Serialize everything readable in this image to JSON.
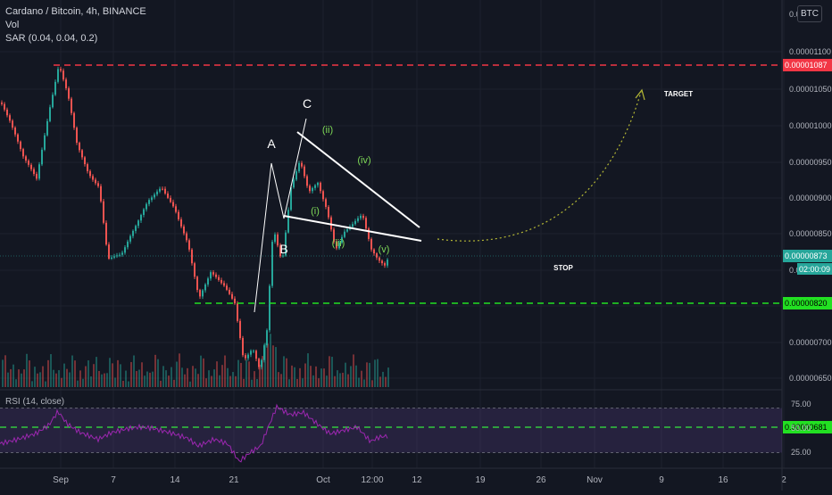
{
  "legend": {
    "title": "Cardano / Bitcoin, 4h, BINANCE",
    "vol": "Vol",
    "sar": "SAR (0.04, 0.04, 0.2)",
    "rsi": "RSI (14, close)"
  },
  "currency_badge": "BTC",
  "colors": {
    "background": "#131722",
    "up": "#26a69a",
    "down": "#ef5350",
    "resistance": "#f23645",
    "support": "#22e022",
    "rsi_line": "#9c27b0",
    "last_price": "#26a69a"
  },
  "chart_data": {
    "type": "candlestick",
    "price_axis": {
      "ticks": [
        "0.00001100",
        "0.00001050",
        "0.00001000",
        "0.00000950",
        "0.00000900",
        "0.00000850",
        "0.00000800",
        "0.00000750",
        "0.00000700",
        "0.00000650"
      ],
      "top_label": "0.000011",
      "range": [
        6.4e-06,
        1.145e-05
      ]
    },
    "x_axis": {
      "ticks": [
        "Sep",
        "7",
        "14",
        "21",
        "Oct",
        "12:00",
        "12",
        "19",
        "26",
        "Nov",
        "9",
        "16",
        "2"
      ]
    },
    "price_path": [
      [
        0,
        1.045e-05
      ],
      [
        10,
        1.025e-05
      ],
      [
        25,
        9.85e-06
      ],
      [
        40,
        9.6e-06
      ],
      [
        55,
        1.04e-05
      ],
      [
        65,
        1.087e-05
      ],
      [
        75,
        1.055e-05
      ],
      [
        85,
        1e-05
      ],
      [
        98,
        9.65e-06
      ],
      [
        110,
        9.5e-06
      ],
      [
        120,
        8.7e-06
      ],
      [
        135,
        8.75e-06
      ],
      [
        150,
        9.05e-06
      ],
      [
        165,
        9.35e-06
      ],
      [
        180,
        9.5e-06
      ],
      [
        195,
        9.25e-06
      ],
      [
        210,
        8.85e-06
      ],
      [
        222,
        8.25e-06
      ],
      [
        235,
        8.55e-06
      ],
      [
        250,
        8.4e-06
      ],
      [
        262,
        8.2e-06
      ],
      [
        272,
        7.55e-06
      ],
      [
        282,
        7.7e-06
      ],
      [
        290,
        7.45e-06
      ],
      [
        298,
        7.9e-06
      ],
      [
        305,
        9.05e-06
      ],
      [
        315,
        8.65e-06
      ],
      [
        325,
        9.5e-06
      ],
      [
        335,
        9.8e-06
      ],
      [
        345,
        9.45e-06
      ],
      [
        355,
        9.55e-06
      ],
      [
        365,
        9.25e-06
      ],
      [
        375,
        8.8e-06
      ],
      [
        385,
        9e-06
      ],
      [
        395,
        9.1e-06
      ],
      [
        405,
        9.2e-06
      ],
      [
        415,
        8.8e-06
      ],
      [
        422,
        8.7e-06
      ],
      [
        430,
        8.62e-06
      ],
      [
        435,
        8.73e-06
      ]
    ],
    "last_price": "0.00000873",
    "countdown": "02:00:09",
    "levels": [
      {
        "name": "resistance",
        "value": "0.00001087",
        "style": "dashed",
        "color": "#f23645"
      },
      {
        "name": "stop",
        "value": "0.00000820",
        "style": "dashed",
        "color": "#22e022"
      },
      {
        "name": "support",
        "value": "0.00000681",
        "style": "dashed",
        "color": "#22e022"
      }
    ],
    "annotations": {
      "A": "A",
      "B": "B",
      "C": "C",
      "i": "(i)",
      "ii": "(ii)",
      "iii": "(iii)",
      "iv": "(iv)",
      "v": "(v)",
      "target": "TARGET",
      "stop": "STOP"
    },
    "rsi": {
      "ticks": [
        "75.00",
        "50.00",
        "25.00"
      ],
      "upper": 70,
      "lower": 30,
      "range": [
        20,
        80
      ],
      "path": [
        [
          0,
          38
        ],
        [
          20,
          42
        ],
        [
          40,
          47
        ],
        [
          55,
          55
        ],
        [
          65,
          67
        ],
        [
          75,
          56
        ],
        [
          90,
          48
        ],
        [
          110,
          42
        ],
        [
          125,
          48
        ],
        [
          140,
          51
        ],
        [
          155,
          53
        ],
        [
          170,
          52
        ],
        [
          190,
          48
        ],
        [
          210,
          43
        ],
        [
          222,
          36
        ],
        [
          240,
          42
        ],
        [
          255,
          38
        ],
        [
          268,
          22
        ],
        [
          280,
          30
        ],
        [
          292,
          36
        ],
        [
          300,
          52
        ],
        [
          310,
          71
        ],
        [
          325,
          64
        ],
        [
          340,
          66
        ],
        [
          355,
          56
        ],
        [
          370,
          47
        ],
        [
          385,
          50
        ],
        [
          400,
          53
        ],
        [
          415,
          40
        ],
        [
          425,
          44
        ],
        [
          435,
          45
        ]
      ]
    }
  }
}
